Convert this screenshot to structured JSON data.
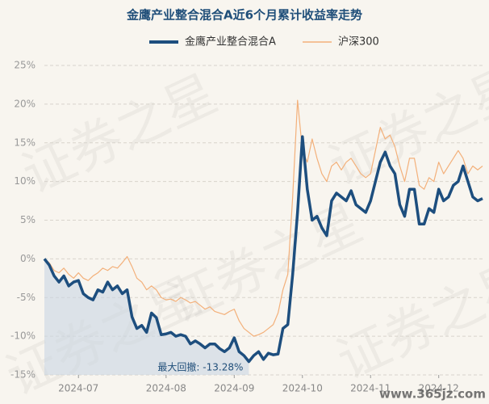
{
  "chart_data": {
    "type": "line",
    "title": "金鹰产业整合混合A近6个月累计收益率走势",
    "watermark": "证券之星",
    "site_mark": "www.365jz.com",
    "annotation": "最大回撤: -13.28%",
    "categories": [
      null,
      null,
      null,
      null,
      null,
      null,
      null,
      "2024-07",
      null,
      null,
      null,
      null,
      null,
      null,
      null,
      null,
      null,
      null,
      null,
      null,
      null,
      null,
      null,
      null,
      null,
      "2024-08",
      null,
      null,
      null,
      null,
      null,
      null,
      null,
      null,
      null,
      null,
      null,
      null,
      null,
      "2024-09",
      null,
      null,
      null,
      null,
      null,
      null,
      null,
      null,
      null,
      null,
      null,
      null,
      null,
      "2024-10",
      null,
      null,
      null,
      null,
      null,
      null,
      null,
      null,
      null,
      null,
      null,
      null,
      null,
      "2024-11",
      null,
      null,
      null,
      null,
      null,
      null,
      null,
      null,
      null,
      null,
      null,
      null,
      null,
      "2024-12",
      null,
      null,
      null,
      null,
      null,
      null,
      null,
      null,
      null
    ],
    "series": [
      {
        "name": "金鹰产业整合混合A",
        "color": "#1d4e7e",
        "values": [
          0,
          -0.8,
          -2.2,
          -3,
          -2.2,
          -3.5,
          -3,
          -2.8,
          -4.5,
          -5,
          -5.3,
          -4,
          -4.3,
          -3,
          -4,
          -3.5,
          -4.5,
          -4,
          -7.5,
          -9,
          -8.6,
          -9.5,
          -7,
          -7.6,
          -9.8,
          -9.7,
          -9.5,
          -10,
          -9.8,
          -10,
          -11,
          -10.6,
          -11,
          -11.5,
          -11,
          -11,
          -11.6,
          -12,
          -11.5,
          -10.2,
          -12,
          -12.5,
          -13.28,
          -12.5,
          -12,
          -13,
          -12.2,
          -12.4,
          -12.3,
          -9,
          -8.5,
          -2,
          6,
          15.8,
          9,
          5,
          5.5,
          4,
          3,
          7.5,
          8.5,
          8,
          7.5,
          8.8,
          7,
          6.5,
          6,
          7.5,
          10,
          12.5,
          13.8,
          12,
          11,
          7,
          5.5,
          9,
          9,
          4.5,
          4.5,
          6.5,
          6,
          9,
          7.5,
          8,
          9.5,
          10,
          12,
          10,
          8,
          7.5,
          7.8
        ]
      },
      {
        "name": "沪深300",
        "color": "#f3b07a",
        "values": [
          0,
          -0.5,
          -1.5,
          -1.8,
          -1.2,
          -2,
          -2.5,
          -1.8,
          -2.5,
          -2.8,
          -2.2,
          -1.8,
          -1.2,
          -1.5,
          -1,
          -1.2,
          -0.5,
          0.3,
          -1,
          -2.5,
          -3,
          -4,
          -3.5,
          -4,
          -5,
          -5.3,
          -5.2,
          -5.5,
          -5,
          -5.3,
          -5.7,
          -5.5,
          -6,
          -6.5,
          -6.2,
          -6.8,
          -7,
          -7.2,
          -6.8,
          -6.5,
          -8,
          -9,
          -9.5,
          -10,
          -9.8,
          -9.5,
          -9,
          -8.5,
          -7,
          -4,
          -2,
          8,
          20.5,
          14,
          12.5,
          15.5,
          13,
          11,
          10,
          12,
          12.5,
          11.5,
          12.5,
          13,
          12,
          11,
          10.5,
          11,
          14,
          17,
          15.5,
          16,
          14.5,
          12,
          10,
          13,
          13,
          9.5,
          9,
          10.5,
          10,
          12.5,
          11,
          12,
          13,
          14,
          13,
          11,
          12,
          11.5,
          12
        ]
      }
    ],
    "ylim": [
      -15,
      25
    ],
    "yticks": [
      {
        "value": -15,
        "label": "-15%"
      },
      {
        "value": -10,
        "label": "-10%"
      },
      {
        "value": -5,
        "label": "-5%"
      },
      {
        "value": 0,
        "label": "0%"
      },
      {
        "value": 5,
        "label": "5%"
      },
      {
        "value": 10,
        "label": "10%"
      },
      {
        "value": 15,
        "label": "15%"
      },
      {
        "value": 20,
        "label": "20%"
      },
      {
        "value": 25,
        "label": "25%"
      }
    ],
    "grid": true
  }
}
